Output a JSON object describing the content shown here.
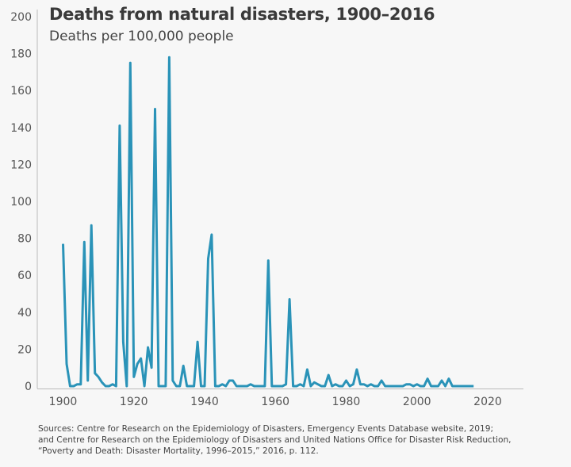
{
  "chart_data": {
    "type": "line",
    "title": "Deaths from natural disasters, 1900–2016",
    "subtitle": "Deaths per 100,000 people",
    "xlabel": "",
    "ylabel": "",
    "xlim": [
      1896,
      2030
    ],
    "ylim": [
      0,
      200
    ],
    "x_ticks": [
      1900,
      1920,
      1940,
      1960,
      1980,
      2000,
      2020
    ],
    "y_ticks": [
      0,
      20,
      40,
      60,
      80,
      100,
      120,
      140,
      160,
      180,
      200
    ],
    "grid": false,
    "line_color": "#2a93b8",
    "x": [
      1900,
      1901,
      1902,
      1903,
      1904,
      1905,
      1906,
      1907,
      1908,
      1909,
      1910,
      1911,
      1912,
      1913,
      1914,
      1915,
      1916,
      1917,
      1918,
      1919,
      1920,
      1921,
      1922,
      1923,
      1924,
      1925,
      1926,
      1927,
      1928,
      1929,
      1930,
      1931,
      1932,
      1933,
      1934,
      1935,
      1936,
      1937,
      1938,
      1939,
      1940,
      1941,
      1942,
      1943,
      1944,
      1945,
      1946,
      1947,
      1948,
      1949,
      1950,
      1951,
      1952,
      1953,
      1954,
      1955,
      1956,
      1957,
      1958,
      1959,
      1960,
      1961,
      1962,
      1963,
      1964,
      1965,
      1966,
      1967,
      1968,
      1969,
      1970,
      1971,
      1972,
      1973,
      1974,
      1975,
      1976,
      1977,
      1978,
      1979,
      1980,
      1981,
      1982,
      1983,
      1984,
      1985,
      1986,
      1987,
      1988,
      1989,
      1990,
      1991,
      1992,
      1993,
      1994,
      1995,
      1996,
      1997,
      1998,
      1999,
      2000,
      2001,
      2002,
      2003,
      2004,
      2005,
      2006,
      2007,
      2008,
      2009,
      2010,
      2011,
      2012,
      2013,
      2014,
      2015,
      2016
    ],
    "y": [
      77,
      12,
      0,
      0,
      1,
      1,
      78,
      3,
      87,
      7,
      5,
      2,
      0,
      0,
      1,
      0,
      141,
      24,
      0,
      175,
      5,
      12,
      15,
      0,
      21,
      10,
      150,
      0,
      0,
      0,
      178,
      3,
      0,
      0,
      11,
      0,
      0,
      0,
      24,
      0,
      0,
      69,
      82,
      0,
      0,
      1,
      0,
      3,
      3,
      0,
      0,
      0,
      0,
      1,
      0,
      0,
      0,
      0,
      68,
      0,
      0,
      0,
      0,
      1,
      47,
      0,
      0,
      1,
      0,
      9,
      0,
      2,
      1,
      0,
      0,
      6,
      0,
      1,
      0,
      0,
      3,
      0,
      1,
      9,
      1,
      1,
      0,
      1,
      0,
      0,
      3,
      0,
      0,
      0,
      0,
      0,
      0,
      1,
      1,
      0,
      1,
      0,
      0,
      4,
      0,
      0,
      0,
      3,
      0,
      4,
      0,
      0,
      0,
      0,
      0,
      0,
      0
    ]
  },
  "source": {
    "line1": "Sources: Centre for Research on the Epidemiology of Disasters, Emergency Events Database website, 2019;",
    "line2": "and Centre for Research on the Epidemiology of Disasters and United Nations Office for Disaster Risk Reduction,",
    "line3": "“Poverty and Death: Disaster Mortality, 1996–2015,” 2016, p. 112."
  }
}
